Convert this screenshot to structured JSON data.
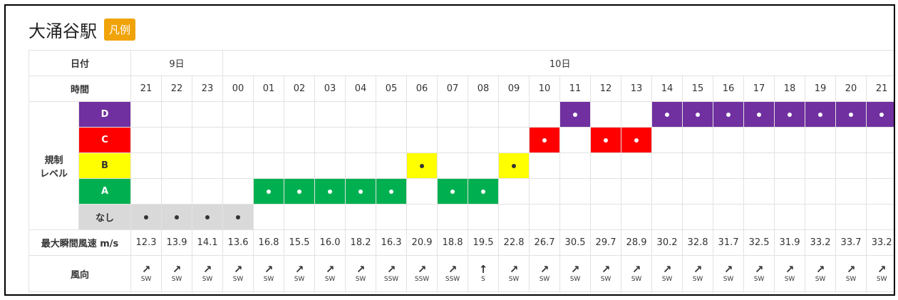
{
  "header": {
    "title": "大涌谷駅",
    "legend_button": "凡例"
  },
  "table": {
    "date_label": "日付",
    "time_label": "時間",
    "day_groups": [
      {
        "label": "9日",
        "hours": [
          "21",
          "22",
          "23"
        ]
      },
      {
        "label": "10日",
        "hours": [
          "00",
          "01",
          "02",
          "03",
          "04",
          "05",
          "06",
          "07",
          "08",
          "09",
          "10",
          "11",
          "12",
          "13",
          "14",
          "15",
          "16",
          "17",
          "18",
          "19",
          "20",
          "21"
        ]
      }
    ],
    "level_label_lines": [
      "規制",
      "レベル"
    ],
    "levels": [
      {
        "name": "D",
        "color": "#7030a0",
        "text_color": "#ffffff"
      },
      {
        "name": "C",
        "color": "#ff0000",
        "text_color": "#ffffff"
      },
      {
        "name": "B",
        "color": "#ffff00",
        "text_color": "#333333"
      },
      {
        "name": "A",
        "color": "#00b050",
        "text_color": "#ffffff"
      },
      {
        "name": "なし",
        "color": "#d9d9d9",
        "text_color": "#333333"
      }
    ],
    "hourly_levels": [
      "なし",
      "なし",
      "なし",
      "なし",
      "A",
      "A",
      "A",
      "A",
      "A",
      "B",
      "A",
      "A",
      "B",
      "C",
      "D",
      "C",
      "C",
      "D",
      "D",
      "D",
      "D",
      "D",
      "D",
      "D",
      "D"
    ],
    "wind_speed_label": "最大瞬間風速 m/s",
    "wind_speeds": [
      "12.3",
      "13.9",
      "14.1",
      "13.6",
      "16.8",
      "15.5",
      "16.0",
      "18.2",
      "16.3",
      "20.9",
      "18.8",
      "19.5",
      "22.8",
      "26.7",
      "30.5",
      "29.7",
      "28.9",
      "30.2",
      "32.8",
      "31.7",
      "32.5",
      "31.9",
      "33.2",
      "33.7",
      "33.2"
    ],
    "wind_direction_label": "風向",
    "wind_arrows": [
      "↗",
      "↗",
      "↗",
      "↗",
      "↗",
      "↗",
      "↗",
      "↗",
      "↗",
      "↗",
      "↗",
      "↑",
      "↗",
      "↗",
      "↗",
      "↗",
      "↗",
      "↗",
      "↗",
      "↗",
      "↗",
      "↗",
      "↗",
      "↗",
      "↗"
    ],
    "wind_directions": [
      "SW",
      "SW",
      "SW",
      "SW",
      "SW",
      "SW",
      "SW",
      "SW",
      "SSW",
      "SSW",
      "SSW",
      "S",
      "SW",
      "SW",
      "SW",
      "SW",
      "SW",
      "SW",
      "SW",
      "SW",
      "SW",
      "SW",
      "SW",
      "SW",
      "SW"
    ]
  }
}
